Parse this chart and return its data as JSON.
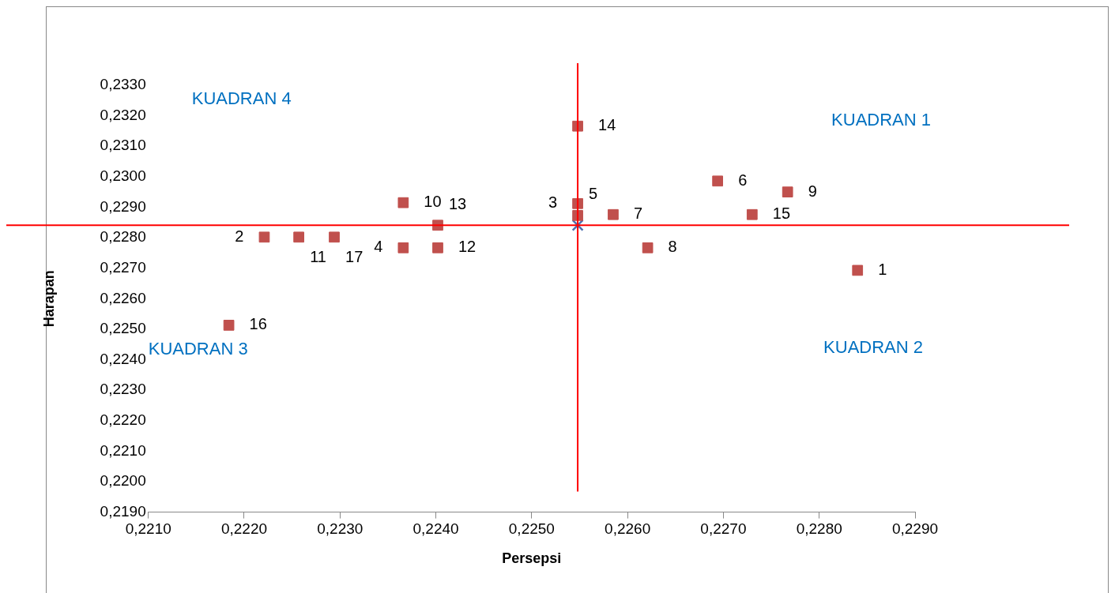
{
  "chart_data": {
    "type": "scatter",
    "xlabel": "Persepsi",
    "ylabel": "Harapan",
    "xlim": [
      0.221,
      0.229
    ],
    "ylim": [
      0.219,
      0.233
    ],
    "xticks": [
      {
        "value": 0.221,
        "label": "0,2210"
      },
      {
        "value": 0.222,
        "label": "0,2220"
      },
      {
        "value": 0.223,
        "label": "0,2230"
      },
      {
        "value": 0.224,
        "label": "0,2240"
      },
      {
        "value": 0.225,
        "label": "0,2250"
      },
      {
        "value": 0.226,
        "label": "0,2260"
      },
      {
        "value": 0.227,
        "label": "0,2270"
      },
      {
        "value": 0.228,
        "label": "0,2280"
      },
      {
        "value": 0.229,
        "label": "0,2290"
      }
    ],
    "yticks": [
      {
        "value": 0.219,
        "label": "0,2190"
      },
      {
        "value": 0.22,
        "label": "0,2200"
      },
      {
        "value": 0.221,
        "label": "0,2210"
      },
      {
        "value": 0.222,
        "label": "0,2220"
      },
      {
        "value": 0.223,
        "label": "0,2230"
      },
      {
        "value": 0.224,
        "label": "0,2240"
      },
      {
        "value": 0.225,
        "label": "0,2250"
      },
      {
        "value": 0.226,
        "label": "0,2260"
      },
      {
        "value": 0.227,
        "label": "0,2270"
      },
      {
        "value": 0.228,
        "label": "0,2280"
      },
      {
        "value": 0.229,
        "label": "0,2290"
      },
      {
        "value": 0.23,
        "label": "0,2300"
      },
      {
        "value": 0.231,
        "label": "0,2310"
      },
      {
        "value": 0.232,
        "label": "0,2320"
      },
      {
        "value": 0.233,
        "label": "0,2330"
      }
    ],
    "grid": false,
    "legend": false,
    "series": [
      {
        "color": "#c0504d",
        "marker": "square",
        "x": [
          0.2284,
          0.22221,
          0.22548,
          0.22366,
          0.22548,
          0.22694,
          0.22585,
          0.22621,
          0.22767,
          0.22366,
          0.22257,
          0.22402,
          0.22402,
          0.22548,
          0.2273,
          0.22184,
          0.22294
        ],
        "values": [
          0.22693,
          0.22802,
          0.22912,
          0.22767,
          0.22873,
          0.22986,
          0.22876,
          0.22767,
          0.2295,
          0.22915,
          0.22802,
          0.22767,
          0.22841,
          0.23166,
          0.22876,
          0.22513,
          0.22802
        ]
      },
      {
        "color": "#4f6fb0",
        "marker": "cross",
        "x": [
          0.22548
        ],
        "values": [
          0.22841
        ]
      }
    ],
    "ref_lines": [
      {
        "axis": "x",
        "value": 0.22548,
        "color": "#ff0000"
      },
      {
        "axis": "y",
        "value": 0.22841,
        "color": "#ff0000"
      }
    ],
    "annotations": [
      "KUADRAN 4",
      "KUADRAN 1",
      "KUADRAN 3",
      "KUADRAN 2",
      {
        "text": "1",
        "x": 0.2284,
        "y": 0.22693
      },
      {
        "text": "2",
        "x": 0.22221,
        "y": 0.22802
      },
      {
        "text": "3",
        "x": 0.22548,
        "y": 0.22912
      },
      {
        "text": "4",
        "x": 0.22366,
        "y": 0.22767
      },
      {
        "text": "5",
        "x": 0.22548,
        "y": 0.22873
      },
      {
        "text": "6",
        "x": 0.22694,
        "y": 0.22986
      },
      {
        "text": "7",
        "x": 0.22585,
        "y": 0.22876
      },
      {
        "text": "8",
        "x": 0.22621,
        "y": 0.22767
      },
      {
        "text": "9",
        "x": 0.22767,
        "y": 0.2295
      },
      {
        "text": "10",
        "x": 0.22366,
        "y": 0.22915
      },
      {
        "text": "11",
        "x": 0.22257,
        "y": 0.22802
      },
      {
        "text": "12",
        "x": 0.22402,
        "y": 0.22767
      },
      {
        "text": "13",
        "x": 0.22402,
        "y": 0.22841
      },
      {
        "text": "14",
        "x": 0.22548,
        "y": 0.23166
      },
      {
        "text": "15",
        "x": 0.2273,
        "y": 0.22876
      },
      {
        "text": "16",
        "x": 0.22184,
        "y": 0.22513
      },
      {
        "text": "17",
        "x": 0.22294,
        "y": 0.22802
      }
    ]
  }
}
